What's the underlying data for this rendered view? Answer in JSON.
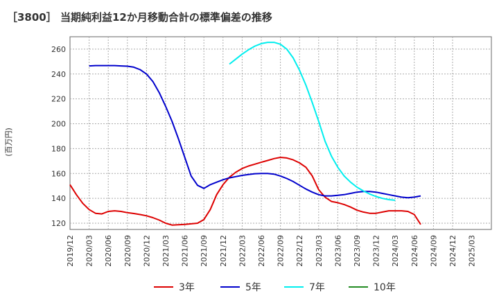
{
  "chart_data": {
    "type": "line",
    "title": "［3800］ 当期純利益12か月移動合計の標準偏差の推移",
    "ylabel": "(百万円)",
    "xlabel": "",
    "ylim": [
      115,
      270
    ],
    "yticks": [
      120,
      140,
      160,
      180,
      200,
      220,
      240,
      260
    ],
    "x_ticks": [
      "2019/12",
      "2020/03",
      "2020/06",
      "2020/09",
      "2020/12",
      "2021/03",
      "2021/06",
      "2021/09",
      "2021/12",
      "2022/03",
      "2022/06",
      "2022/09",
      "2022/12",
      "2023/03",
      "2023/06",
      "2023/09",
      "2023/12",
      "2024/03",
      "2024/06",
      "2024/09",
      "2024/12",
      "2025/03"
    ],
    "grid": true,
    "legend_position": "bottom",
    "series": [
      {
        "name": "3年",
        "color": "#dd0000",
        "values": [
          {
            "x": 0,
            "y": 151
          },
          {
            "x": 1,
            "y": 143
          },
          {
            "x": 2,
            "y": 136
          },
          {
            "x": 3,
            "y": 131
          },
          {
            "x": 4,
            "y": 128
          },
          {
            "x": 5,
            "y": 127.5
          },
          {
            "x": 6,
            "y": 129.5
          },
          {
            "x": 7,
            "y": 130
          },
          {
            "x": 8,
            "y": 129.5
          },
          {
            "x": 9,
            "y": 128.5
          },
          {
            "x": 10,
            "y": 127.8
          },
          {
            "x": 11,
            "y": 127
          },
          {
            "x": 12,
            "y": 126
          },
          {
            "x": 13,
            "y": 124.5
          },
          {
            "x": 14,
            "y": 122.5
          },
          {
            "x": 15,
            "y": 120
          },
          {
            "x": 16,
            "y": 118.5
          },
          {
            "x": 17,
            "y": 118.8
          },
          {
            "x": 18,
            "y": 119
          },
          {
            "x": 19,
            "y": 119.5
          },
          {
            "x": 20,
            "y": 120
          },
          {
            "x": 21,
            "y": 123
          },
          {
            "x": 22,
            "y": 131
          },
          {
            "x": 23,
            "y": 143
          },
          {
            "x": 24,
            "y": 151
          },
          {
            "x": 25,
            "y": 157
          },
          {
            "x": 26,
            "y": 161
          },
          {
            "x": 27,
            "y": 164
          },
          {
            "x": 28,
            "y": 166
          },
          {
            "x": 29,
            "y": 167.5
          },
          {
            "x": 30,
            "y": 169
          },
          {
            "x": 31,
            "y": 170.5
          },
          {
            "x": 32,
            "y": 172
          },
          {
            "x": 33,
            "y": 173
          },
          {
            "x": 34,
            "y": 172.5
          },
          {
            "x": 35,
            "y": 171
          },
          {
            "x": 36,
            "y": 168.5
          },
          {
            "x": 37,
            "y": 165
          },
          {
            "x": 38,
            "y": 158
          },
          {
            "x": 39,
            "y": 147
          },
          {
            "x": 40,
            "y": 141
          },
          {
            "x": 41,
            "y": 137.5
          },
          {
            "x": 42,
            "y": 136.5
          },
          {
            "x": 43,
            "y": 135
          },
          {
            "x": 44,
            "y": 133
          },
          {
            "x": 45,
            "y": 130.5
          },
          {
            "x": 46,
            "y": 129
          },
          {
            "x": 47,
            "y": 128
          },
          {
            "x": 48,
            "y": 128
          },
          {
            "x": 49,
            "y": 129
          },
          {
            "x": 50,
            "y": 130
          },
          {
            "x": 51,
            "y": 130
          },
          {
            "x": 52,
            "y": 130
          },
          {
            "x": 53,
            "y": 129.5
          },
          {
            "x": 54,
            "y": 127
          },
          {
            "x": 55,
            "y": 119
          }
        ]
      },
      {
        "name": "5年",
        "color": "#0000cc",
        "values": [
          {
            "x": 3,
            "y": 246.5
          },
          {
            "x": 4,
            "y": 246.8
          },
          {
            "x": 5,
            "y": 246.8
          },
          {
            "x": 6,
            "y": 246.8
          },
          {
            "x": 7,
            "y": 246.8
          },
          {
            "x": 8,
            "y": 246.5
          },
          {
            "x": 9,
            "y": 246.3
          },
          {
            "x": 10,
            "y": 245.5
          },
          {
            "x": 11,
            "y": 243.5
          },
          {
            "x": 12,
            "y": 240
          },
          {
            "x": 13,
            "y": 234
          },
          {
            "x": 14,
            "y": 225
          },
          {
            "x": 15,
            "y": 214
          },
          {
            "x": 16,
            "y": 202
          },
          {
            "x": 17,
            "y": 188
          },
          {
            "x": 18,
            "y": 173
          },
          {
            "x": 19,
            "y": 158
          },
          {
            "x": 20,
            "y": 150.5
          },
          {
            "x": 21,
            "y": 148
          },
          {
            "x": 22,
            "y": 151
          },
          {
            "x": 23,
            "y": 153
          },
          {
            "x": 24,
            "y": 155
          },
          {
            "x": 25,
            "y": 156.5
          },
          {
            "x": 26,
            "y": 157.5
          },
          {
            "x": 27,
            "y": 158.5
          },
          {
            "x": 28,
            "y": 159.2
          },
          {
            "x": 29,
            "y": 159.8
          },
          {
            "x": 30,
            "y": 160
          },
          {
            "x": 31,
            "y": 160
          },
          {
            "x": 32,
            "y": 159.5
          },
          {
            "x": 33,
            "y": 158
          },
          {
            "x": 34,
            "y": 156
          },
          {
            "x": 35,
            "y": 153.5
          },
          {
            "x": 36,
            "y": 150.5
          },
          {
            "x": 37,
            "y": 147.5
          },
          {
            "x": 38,
            "y": 145
          },
          {
            "x": 39,
            "y": 143
          },
          {
            "x": 40,
            "y": 142
          },
          {
            "x": 41,
            "y": 142
          },
          {
            "x": 42,
            "y": 142.5
          },
          {
            "x": 43,
            "y": 143
          },
          {
            "x": 44,
            "y": 144
          },
          {
            "x": 45,
            "y": 145
          },
          {
            "x": 46,
            "y": 145.5
          },
          {
            "x": 47,
            "y": 145.5
          },
          {
            "x": 48,
            "y": 145
          },
          {
            "x": 49,
            "y": 144
          },
          {
            "x": 50,
            "y": 143
          },
          {
            "x": 51,
            "y": 142
          },
          {
            "x": 52,
            "y": 141
          },
          {
            "x": 53,
            "y": 140.5
          },
          {
            "x": 54,
            "y": 141
          },
          {
            "x": 55,
            "y": 142
          }
        ]
      },
      {
        "name": "7年",
        "color": "#00eeee",
        "values": [
          {
            "x": 25,
            "y": 248
          },
          {
            "x": 26,
            "y": 252
          },
          {
            "x": 27,
            "y": 256
          },
          {
            "x": 28,
            "y": 259.5
          },
          {
            "x": 29,
            "y": 262.5
          },
          {
            "x": 30,
            "y": 264.5
          },
          {
            "x": 31,
            "y": 265.5
          },
          {
            "x": 32,
            "y": 265.5
          },
          {
            "x": 33,
            "y": 264
          },
          {
            "x": 34,
            "y": 260
          },
          {
            "x": 35,
            "y": 253
          },
          {
            "x": 36,
            "y": 243
          },
          {
            "x": 37,
            "y": 231
          },
          {
            "x": 38,
            "y": 217
          },
          {
            "x": 39,
            "y": 202
          },
          {
            "x": 40,
            "y": 186
          },
          {
            "x": 41,
            "y": 174
          },
          {
            "x": 42,
            "y": 165
          },
          {
            "x": 43,
            "y": 158
          },
          {
            "x": 44,
            "y": 153
          },
          {
            "x": 45,
            "y": 149
          },
          {
            "x": 46,
            "y": 146
          },
          {
            "x": 47,
            "y": 143.5
          },
          {
            "x": 48,
            "y": 141.5
          },
          {
            "x": 49,
            "y": 140
          },
          {
            "x": 50,
            "y": 139
          },
          {
            "x": 51,
            "y": 138.5
          }
        ]
      },
      {
        "name": "10年",
        "color": "#228b22",
        "values": []
      }
    ]
  }
}
